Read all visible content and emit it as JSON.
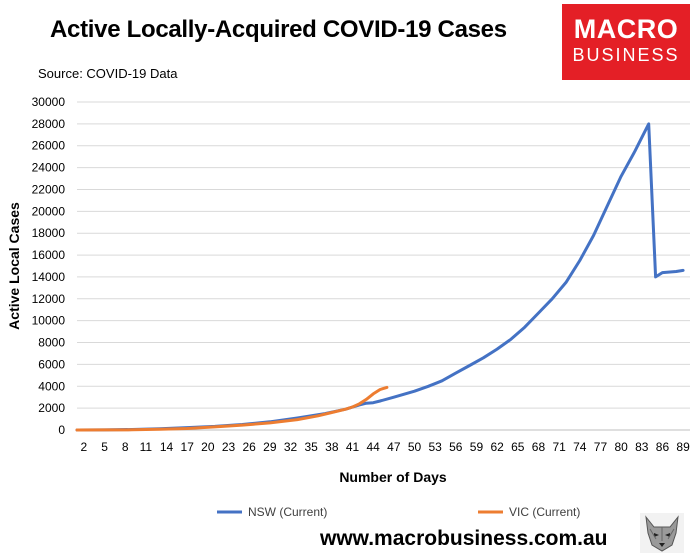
{
  "header": {
    "title": "Active Locally-Acquired COVID-19 Cases",
    "source": "Source: COVID-19 Data"
  },
  "logo": {
    "line1": "MACRO",
    "line2": "BUSINESS",
    "color": "#e41f26"
  },
  "footer": {
    "website": "www.macrobusiness.com.au",
    "icon": "wolf-head-icon"
  },
  "chart_data": {
    "type": "line",
    "title": "Active Locally-Acquired COVID-19 Cases",
    "xlabel": "Number of Days",
    "ylabel": "Active Local Cases",
    "xlim": [
      1,
      90
    ],
    "ylim": [
      0,
      30000
    ],
    "yticks": [
      0,
      2000,
      4000,
      6000,
      8000,
      10000,
      12000,
      14000,
      16000,
      18000,
      20000,
      22000,
      24000,
      26000,
      28000,
      30000
    ],
    "xticks": [
      2,
      5,
      8,
      11,
      14,
      17,
      20,
      23,
      26,
      29,
      32,
      35,
      38,
      41,
      44,
      47,
      50,
      53,
      56,
      59,
      62,
      65,
      68,
      71,
      74,
      77,
      80,
      83,
      86,
      89
    ],
    "grid": true,
    "legend_position": "bottom",
    "series": [
      {
        "name": "NSW (Current)",
        "color": "#4472c4",
        "points": [
          [
            1,
            0
          ],
          [
            5,
            10
          ],
          [
            9,
            50
          ],
          [
            13,
            120
          ],
          [
            17,
            220
          ],
          [
            21,
            330
          ],
          [
            25,
            500
          ],
          [
            29,
            750
          ],
          [
            33,
            1100
          ],
          [
            37,
            1500
          ],
          [
            40,
            1900
          ],
          [
            42,
            2300
          ],
          [
            43,
            2450
          ],
          [
            44,
            2500
          ],
          [
            45,
            2650
          ],
          [
            47,
            3000
          ],
          [
            50,
            3550
          ],
          [
            52,
            4000
          ],
          [
            54,
            4500
          ],
          [
            56,
            5200
          ],
          [
            58,
            5900
          ],
          [
            60,
            6600
          ],
          [
            62,
            7400
          ],
          [
            64,
            8300
          ],
          [
            66,
            9400
          ],
          [
            68,
            10700
          ],
          [
            70,
            12000
          ],
          [
            72,
            13500
          ],
          [
            74,
            15500
          ],
          [
            76,
            17800
          ],
          [
            78,
            20500
          ],
          [
            80,
            23200
          ],
          [
            82,
            25500
          ],
          [
            84,
            28000
          ],
          [
            85,
            14000
          ],
          [
            86,
            14400
          ],
          [
            88,
            14500
          ],
          [
            89,
            14600
          ]
        ]
      },
      {
        "name": "VIC (Current)",
        "color": "#ed7d31",
        "points": [
          [
            1,
            0
          ],
          [
            5,
            5
          ],
          [
            9,
            20
          ],
          [
            13,
            60
          ],
          [
            17,
            140
          ],
          [
            21,
            280
          ],
          [
            25,
            450
          ],
          [
            29,
            650
          ],
          [
            33,
            950
          ],
          [
            36,
            1300
          ],
          [
            38,
            1600
          ],
          [
            40,
            1900
          ],
          [
            41,
            2100
          ],
          [
            42,
            2400
          ],
          [
            43,
            2800
          ],
          [
            44,
            3300
          ],
          [
            45,
            3700
          ],
          [
            46,
            3900
          ]
        ]
      }
    ]
  }
}
